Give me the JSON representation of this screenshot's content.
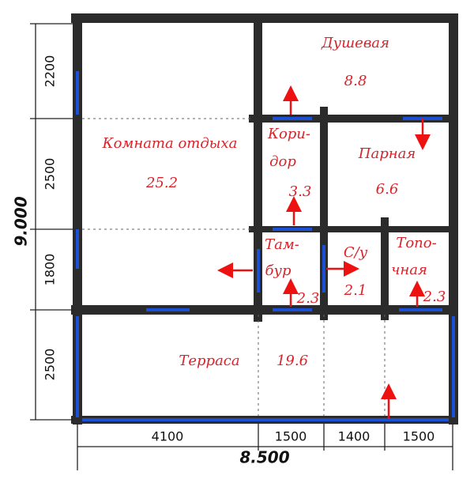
{
  "plan": {
    "rooms": [
      {
        "name": [
          "Душевая"
        ],
        "area": "8.8"
      },
      {
        "name": [
          "Комната отдыха"
        ],
        "area": "25.2"
      },
      {
        "name": [
          "Кори-",
          "дор"
        ],
        "area": "3.3"
      },
      {
        "name": [
          "Парная"
        ],
        "area": "6.6"
      },
      {
        "name": [
          "Там-",
          "бур"
        ],
        "area": "2.3"
      },
      {
        "name": [
          "С/у"
        ],
        "area": "2.1"
      },
      {
        "name": [
          "Топо-",
          "чная"
        ],
        "area": "2.3"
      },
      {
        "name": [
          "Терраса"
        ],
        "area": "19.6"
      }
    ],
    "vertical_dimensions": [
      "2200",
      "2500",
      "1800",
      "2500"
    ],
    "vertical_total": "9.000",
    "horizontal_dimensions": [
      "4100",
      "1500",
      "1400",
      "1500"
    ],
    "horizontal_total": "8.500"
  }
}
